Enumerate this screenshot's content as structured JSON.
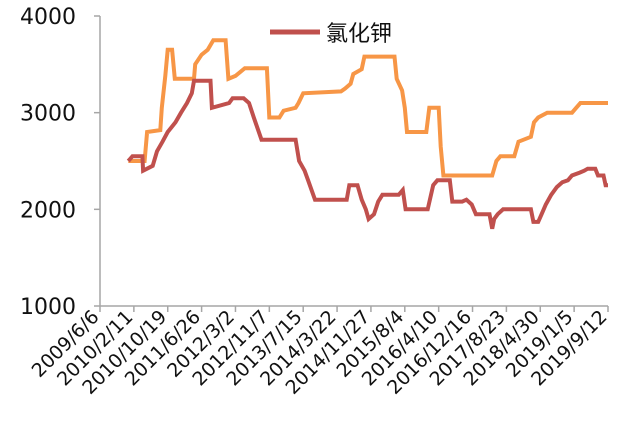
{
  "chart_data": {
    "type": "line",
    "title": "",
    "xlabel": "",
    "ylabel": "",
    "ylim": [
      1000,
      4000
    ],
    "yticks": [
      1000,
      2000,
      3000,
      4000
    ],
    "xlim": [
      "2009/6/6",
      "2019/9/12"
    ],
    "x_tick_labels": [
      "2009/6/6",
      "2010/2/11",
      "2010/10/19",
      "2011/6/26",
      "2012/3/2",
      "2012/11/7",
      "2013/7/15",
      "2014/3/22",
      "2014/11/27",
      "2015/8/4",
      "2016/4/10",
      "2016/12/16",
      "2017/8/23",
      "2018/4/30",
      "2019/1/5",
      "2019/9/12"
    ],
    "grid": false,
    "legend": "top-center",
    "series": [
      {
        "name": "氯化钾",
        "color": "#c0504d",
        "points": [
          [
            "2010/1/1",
            2500
          ],
          [
            "2010/2/1",
            2550
          ],
          [
            "2010/4/15",
            2550
          ],
          [
            "2010/4/20",
            2400
          ],
          [
            "2010/6/30",
            2450
          ],
          [
            "2010/8/1",
            2600
          ],
          [
            "2010/9/10",
            2700
          ],
          [
            "2010/10/19",
            2800
          ],
          [
            "2010/12/15",
            2900
          ],
          [
            "2011/1/25",
            3000
          ],
          [
            "2011/3/10",
            3100
          ],
          [
            "2011/4/15",
            3200
          ],
          [
            "2011/5/1",
            3330
          ],
          [
            "2011/8/31",
            3330
          ],
          [
            "2011/9/10",
            3050
          ],
          [
            "2012/1/15",
            3100
          ],
          [
            "2012/2/10",
            3150
          ],
          [
            "2012/5/1",
            3150
          ],
          [
            "2012/6/10",
            3100
          ],
          [
            "2012/7/15",
            2950
          ],
          [
            "2012/9/10",
            2720
          ],
          [
            "2013/5/20",
            2720
          ],
          [
            "2013/6/15",
            2500
          ],
          [
            "2013/7/25",
            2400
          ],
          [
            "2013/8/20",
            2300
          ],
          [
            "2013/10/10",
            2100
          ],
          [
            "2014/6/1",
            2100
          ],
          [
            "2014/6/20",
            2250
          ],
          [
            "2014/8/20",
            2250
          ],
          [
            "2014/9/20",
            2100
          ],
          [
            "2014/10/20",
            2000
          ],
          [
            "2014/11/10",
            1900
          ],
          [
            "2014/12/20",
            1950
          ],
          [
            "2015/1/20",
            2080
          ],
          [
            "2015/2/20",
            2150
          ],
          [
            "2015/6/20",
            2150
          ],
          [
            "2015/7/20",
            2200
          ],
          [
            "2015/8/10",
            2000
          ],
          [
            "2016/1/20",
            2000
          ],
          [
            "2016/3/1",
            2250
          ],
          [
            "2016/4/1",
            2300
          ],
          [
            "2016/7/1",
            2300
          ],
          [
            "2016/7/20",
            2080
          ],
          [
            "2016/10/1",
            2080
          ],
          [
            "2016/11/1",
            2100
          ],
          [
            "2016/12/10",
            2050
          ],
          [
            "2017/1/10",
            1950
          ],
          [
            "2017/4/20",
            1950
          ],
          [
            "2017/5/10",
            1800
          ],
          [
            "2017/5/25",
            1900
          ],
          [
            "2017/6/20",
            1950
          ],
          [
            "2017/7/30",
            2000
          ],
          [
            "2017/9/1",
            2000
          ],
          [
            "2018/2/20",
            2000
          ],
          [
            "2018/3/10",
            1870
          ],
          [
            "2018/4/15",
            1870
          ],
          [
            "2018/5/10",
            1950
          ],
          [
            "2018/6/10",
            2050
          ],
          [
            "2018/7/20",
            2150
          ],
          [
            "2018/8/30",
            2230
          ],
          [
            "2018/10/10",
            2280
          ],
          [
            "2018/11/20",
            2300
          ],
          [
            "2018/12/20",
            2350
          ],
          [
            "2019/2/15",
            2380
          ],
          [
            "2019/3/20",
            2400
          ],
          [
            "2019/4/15",
            2420
          ],
          [
            "2019/6/10",
            2420
          ],
          [
            "2019/6/30",
            2350
          ],
          [
            "2019/8/10",
            2350
          ],
          [
            "2019/8/25",
            2250
          ],
          [
            "2019/9/12",
            2250
          ]
        ]
      },
      {
        "name": "",
        "color": "#f79646",
        "points": [
          [
            "2010/1/1",
            2500
          ],
          [
            "2010/5/1",
            2500
          ],
          [
            "2010/5/20",
            2800
          ],
          [
            "2010/8/25",
            2820
          ],
          [
            "2010/9/5",
            3050
          ],
          [
            "2010/10/1",
            3380
          ],
          [
            "2010/10/19",
            3650
          ],
          [
            "2010/11/20",
            3650
          ],
          [
            "2010/12/10",
            3350
          ],
          [
            "2011/5/1",
            3350
          ],
          [
            "2011/5/10",
            3500
          ],
          [
            "2011/6/26",
            3600
          ],
          [
            "2011/8/10",
            3650
          ],
          [
            "2011/9/20",
            3750
          ],
          [
            "2011/12/20",
            3750
          ],
          [
            "2012/1/10",
            3350
          ],
          [
            "2012/3/2",
            3380
          ],
          [
            "2012/5/10",
            3460
          ],
          [
            "2012/10/20",
            3460
          ],
          [
            "2012/11/7",
            2950
          ],
          [
            "2013/1/20",
            2950
          ],
          [
            "2013/2/20",
            3020
          ],
          [
            "2013/5/20",
            3050
          ],
          [
            "2013/6/10",
            3100
          ],
          [
            "2013/7/15",
            3200
          ],
          [
            "2014/4/20",
            3220
          ],
          [
            "2014/5/20",
            3250
          ],
          [
            "2014/6/30",
            3300
          ],
          [
            "2014/7/20",
            3400
          ],
          [
            "2014/9/20",
            3450
          ],
          [
            "2014/10/10",
            3580
          ],
          [
            "2015/5/20",
            3580
          ],
          [
            "2015/6/5",
            3350
          ],
          [
            "2015/7/15",
            3230
          ],
          [
            "2015/8/4",
            3050
          ],
          [
            "2015/8/20",
            2800
          ],
          [
            "2016/1/10",
            2800
          ],
          [
            "2016/2/1",
            3050
          ],
          [
            "2016/4/10",
            3050
          ],
          [
            "2016/4/25",
            2650
          ],
          [
            "2016/5/15",
            2350
          ],
          [
            "2017/5/10",
            2350
          ],
          [
            "2017/6/10",
            2500
          ],
          [
            "2017/7/10",
            2550
          ],
          [
            "2017/10/20",
            2550
          ],
          [
            "2017/11/20",
            2700
          ],
          [
            "2018/2/20",
            2750
          ],
          [
            "2018/3/15",
            2900
          ],
          [
            "2018/4/15",
            2950
          ],
          [
            "2018/6/20",
            3000
          ],
          [
            "2018/12/20",
            3000
          ],
          [
            "2019/1/20",
            3050
          ],
          [
            "2019/2/20",
            3100
          ],
          [
            "2019/9/12",
            3100
          ]
        ]
      }
    ]
  }
}
